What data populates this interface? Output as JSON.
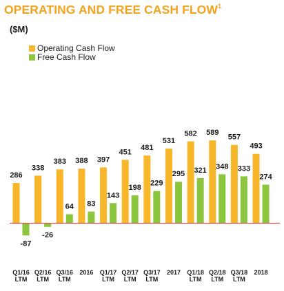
{
  "header": {
    "title": "OPERATING AND FREE CASH FLOW",
    "title_superscript": "1",
    "unit": "($M)"
  },
  "colors": {
    "title": "#f4a31e",
    "operating": "#f8b62a",
    "free": "#8cc63f",
    "zero_line": "#d9534f"
  },
  "chart_data": {
    "type": "bar",
    "categories": [
      [
        "Q1/16",
        "LTM"
      ],
      [
        "Q2/16",
        "LTM"
      ],
      [
        "Q3/16",
        "LTM"
      ],
      [
        "2016"
      ],
      [
        "Q1/17",
        "LTM"
      ],
      [
        "Q2/17",
        "LTM"
      ],
      [
        "Q3/17",
        "LTM"
      ],
      [
        "2017"
      ],
      [
        "Q1/18",
        "LTM"
      ],
      [
        "Q2/18",
        "LTM"
      ],
      [
        "Q3/18",
        "LTM"
      ],
      [
        "2018"
      ]
    ],
    "series": [
      {
        "name": "Operating Cash Flow",
        "values": [
          286,
          338,
          383,
          388,
          397,
          451,
          481,
          531,
          582,
          589,
          557,
          493
        ]
      },
      {
        "name": "Free Cash Flow",
        "values": [
          -87,
          -26,
          64,
          83,
          143,
          198,
          229,
          295,
          321,
          348,
          333,
          274
        ]
      }
    ],
    "title": "OPERATING AND FREE CASH FLOW",
    "ylabel": "($M)",
    "ylim": [
      -100,
      620
    ],
    "grid": false,
    "legend": "top-left"
  }
}
